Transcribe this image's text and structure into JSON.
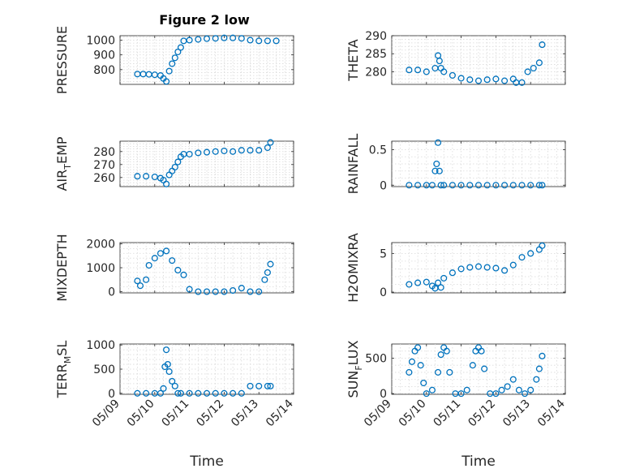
{
  "figure": {
    "title": "Figure 2 low"
  },
  "colors": {
    "marker": "#0072BD"
  },
  "chart_data": [
    {
      "type": "scatter",
      "title": "Figure 2 low",
      "ylabel": "PRESSURE",
      "ylabel_sub": "",
      "xlabel": "",
      "xlim": [
        "05/09",
        "05/14"
      ],
      "ylim": [
        700,
        1030
      ],
      "x_ticks": [
        "05/09",
        "05/10",
        "05/11",
        "05/12",
        "05/13",
        "05/14"
      ],
      "y_ticks": [
        800,
        900,
        1000
      ],
      "grid": true,
      "marker": "circle",
      "series": [
        {
          "x": [
            "05/09 12:00",
            "05/09 16:00",
            "05/09 20:00",
            "05/10 00:00",
            "05/10 04:00",
            "05/10 06:00",
            "05/10 08:00",
            "05/10 10:00",
            "05/10 12:00",
            "05/10 14:00",
            "05/10 16:00",
            "05/10 18:00",
            "05/10 20:00",
            "05/11 00:00",
            "05/11 06:00",
            "05/11 12:00",
            "05/11 18:00",
            "05/12 00:00",
            "05/12 06:00",
            "05/12 12:00",
            "05/12 18:00",
            "05/13 00:00",
            "05/13 06:00",
            "05/13 12:00"
          ],
          "y": [
            770,
            770,
            768,
            765,
            760,
            740,
            720,
            790,
            840,
            880,
            920,
            950,
            995,
            1000,
            1005,
            1010,
            1012,
            1015,
            1015,
            1012,
            1000,
            995,
            995,
            995
          ]
        }
      ]
    },
    {
      "type": "scatter",
      "ylabel": "THETA",
      "ylabel_sub": "",
      "xlabel": "",
      "xlim": [
        "05/09",
        "05/14"
      ],
      "ylim": [
        276.5,
        290
      ],
      "x_ticks": [
        "05/09",
        "05/10",
        "05/11",
        "05/12",
        "05/13",
        "05/14"
      ],
      "y_ticks": [
        280,
        285,
        290
      ],
      "grid": true,
      "marker": "circle",
      "series": [
        {
          "x": [
            "05/09 12:00",
            "05/09 18:00",
            "05/10 00:00",
            "05/10 06:00",
            "05/10 08:00",
            "05/10 09:00",
            "05/10 10:00",
            "05/10 12:00",
            "05/10 18:00",
            "05/11 00:00",
            "05/11 06:00",
            "05/11 12:00",
            "05/11 18:00",
            "05/12 00:00",
            "05/12 06:00",
            "05/12 12:00",
            "05/12 14:00",
            "05/12 18:00",
            "05/12 22:00",
            "05/13 02:00",
            "05/13 06:00",
            "05/13 08:00"
          ],
          "y": [
            280.5,
            280.5,
            280,
            281,
            284.5,
            283,
            281,
            280,
            279,
            278.2,
            277.8,
            277.5,
            277.8,
            278,
            277.5,
            278,
            277,
            277,
            280,
            281,
            282.5,
            287.5
          ]
        }
      ]
    },
    {
      "type": "scatter",
      "ylabel": "AIR",
      "ylabel_sub": "T",
      "ylabel_suffix": "EMP",
      "xlabel": "",
      "xlim": [
        "05/09",
        "05/14"
      ],
      "ylim": [
        253,
        288
      ],
      "x_ticks": [
        "05/09",
        "05/10",
        "05/11",
        "05/12",
        "05/13",
        "05/14"
      ],
      "y_ticks": [
        260,
        270,
        280
      ],
      "grid": true,
      "marker": "circle",
      "series": [
        {
          "x": [
            "05/09 12:00",
            "05/09 18:00",
            "05/10 00:00",
            "05/10 04:00",
            "05/10 06:00",
            "05/10 08:00",
            "05/10 10:00",
            "05/10 12:00",
            "05/10 14:00",
            "05/10 16:00",
            "05/10 18:00",
            "05/10 20:00",
            "05/11 00:00",
            "05/11 06:00",
            "05/11 12:00",
            "05/11 18:00",
            "05/12 00:00",
            "05/12 06:00",
            "05/12 12:00",
            "05/12 18:00",
            "05/13 00:00",
            "05/13 06:00",
            "05/13 08:00"
          ],
          "y": [
            261,
            261,
            260.5,
            259.5,
            258,
            255,
            262,
            265,
            268,
            272,
            276,
            278,
            278,
            279,
            279.5,
            280,
            280.5,
            280,
            281,
            281,
            281,
            283,
            287
          ]
        }
      ]
    },
    {
      "type": "scatter",
      "ylabel": "RAINFALL",
      "ylabel_sub": "",
      "xlabel": "",
      "xlim": [
        "05/09",
        "05/14"
      ],
      "ylim": [
        -0.02,
        0.62
      ],
      "x_ticks": [
        "05/09",
        "05/10",
        "05/11",
        "05/12",
        "05/13",
        "05/14"
      ],
      "y_ticks": [
        0,
        0.5
      ],
      "grid": true,
      "marker": "circle",
      "series": [
        {
          "x": [
            "05/09 12:00",
            "05/09 18:00",
            "05/10 00:00",
            "05/10 04:00",
            "05/10 06:00",
            "05/10 07:00",
            "05/10 08:00",
            "05/10 09:00",
            "05/10 10:00",
            "05/10 12:00",
            "05/10 18:00",
            "05/11 00:00",
            "05/11 06:00",
            "05/11 12:00",
            "05/11 18:00",
            "05/12 00:00",
            "05/12 06:00",
            "05/12 12:00",
            "05/12 18:00",
            "05/13 00:00",
            "05/13 06:00",
            "05/13 08:00"
          ],
          "y": [
            0,
            0,
            0,
            0,
            0.2,
            0.3,
            0.6,
            0.2,
            0,
            0,
            0,
            0,
            0,
            0,
            0,
            0,
            0,
            0,
            0,
            0,
            0,
            0
          ]
        }
      ]
    },
    {
      "type": "scatter",
      "ylabel": "MIXDEPTH",
      "ylabel_sub": "",
      "xlabel": "",
      "xlim": [
        "05/09",
        "05/14"
      ],
      "ylim": [
        -50,
        2050
      ],
      "x_ticks": [
        "05/09",
        "05/10",
        "05/11",
        "05/12",
        "05/13",
        "05/14"
      ],
      "y_ticks": [
        0,
        1000,
        2000
      ],
      "grid": true,
      "marker": "circle",
      "series": [
        {
          "x": [
            "05/09 12:00",
            "05/09 14:00",
            "05/09 18:00",
            "05/09 20:00",
            "05/10 00:00",
            "05/10 04:00",
            "05/10 08:00",
            "05/10 12:00",
            "05/10 16:00",
            "05/10 20:00",
            "05/11 00:00",
            "05/11 06:00",
            "05/11 12:00",
            "05/11 18:00",
            "05/12 00:00",
            "05/12 06:00",
            "05/12 12:00",
            "05/12 18:00",
            "05/13 00:00",
            "05/13 04:00",
            "05/13 06:00",
            "05/13 08:00"
          ],
          "y": [
            450,
            250,
            500,
            1100,
            1400,
            1600,
            1700,
            1300,
            900,
            700,
            100,
            0,
            0,
            0,
            0,
            50,
            150,
            0,
            0,
            500,
            800,
            1150
          ]
        }
      ]
    },
    {
      "type": "scatter",
      "ylabel": "H2OMIXRA",
      "ylabel_sub": "",
      "xlabel": "",
      "xlim": [
        "05/09",
        "05/14"
      ],
      "ylim": [
        -0.1,
        6.4
      ],
      "x_ticks": [
        "05/09",
        "05/10",
        "05/11",
        "05/12",
        "05/13",
        "05/14"
      ],
      "y_ticks": [
        0,
        5
      ],
      "grid": true,
      "marker": "circle",
      "series": [
        {
          "x": [
            "05/09 12:00",
            "05/09 18:00",
            "05/10 00:00",
            "05/10 04:00",
            "05/10 06:00",
            "05/10 08:00",
            "05/10 10:00",
            "05/10 12:00",
            "05/10 18:00",
            "05/11 00:00",
            "05/11 06:00",
            "05/11 12:00",
            "05/11 18:00",
            "05/12 00:00",
            "05/12 06:00",
            "05/12 12:00",
            "05/12 18:00",
            "05/13 00:00",
            "05/13 06:00",
            "05/13 08:00"
          ],
          "y": [
            1.0,
            1.2,
            1.3,
            0.8,
            0.5,
            1.2,
            0.6,
            1.8,
            2.5,
            3.0,
            3.2,
            3.3,
            3.2,
            3.1,
            2.8,
            3.5,
            4.5,
            5.0,
            5.5,
            6.0
          ]
        }
      ]
    },
    {
      "type": "scatter",
      "ylabel": "TERR",
      "ylabel_sub": "M",
      "ylabel_suffix": "SL",
      "xlabel": "Time",
      "xlim": [
        "05/09",
        "05/14"
      ],
      "ylim": [
        -20,
        1020
      ],
      "x_ticks": [
        "05/09",
        "05/10",
        "05/11",
        "05/12",
        "05/13",
        "05/14"
      ],
      "y_ticks": [
        0,
        500,
        1000
      ],
      "grid": true,
      "marker": "circle",
      "series": [
        {
          "x": [
            "05/09 12:00",
            "05/09 18:00",
            "05/10 00:00",
            "05/10 04:00",
            "05/10 06:00",
            "05/10 07:00",
            "05/10 08:00",
            "05/10 09:00",
            "05/10 10:00",
            "05/10 12:00",
            "05/10 14:00",
            "05/10 16:00",
            "05/10 18:00",
            "05/11 00:00",
            "05/11 06:00",
            "05/11 12:00",
            "05/11 18:00",
            "05/12 00:00",
            "05/12 06:00",
            "05/12 12:00",
            "05/12 18:00",
            "05/13 00:00",
            "05/13 06:00",
            "05/13 08:00"
          ],
          "y": [
            0,
            0,
            0,
            0,
            100,
            550,
            900,
            600,
            450,
            250,
            150,
            0,
            0,
            0,
            0,
            0,
            0,
            0,
            0,
            0,
            150,
            150,
            150,
            150
          ]
        }
      ]
    },
    {
      "type": "scatter",
      "ylabel": "SUN",
      "ylabel_sub": "F",
      "ylabel_suffix": "LUX",
      "xlabel": "Time",
      "xlim": [
        "05/09",
        "05/14"
      ],
      "ylim": [
        -10,
        700
      ],
      "x_ticks": [
        "05/09",
        "05/10",
        "05/11",
        "05/12",
        "05/13",
        "05/14"
      ],
      "y_ticks": [
        0,
        500
      ],
      "grid": true,
      "marker": "circle",
      "series": [
        {
          "x": [
            "05/09 12:00",
            "05/09 14:00",
            "05/09 16:00",
            "05/09 18:00",
            "05/09 20:00",
            "05/09 22:00",
            "05/10 00:00",
            "05/10 04:00",
            "05/10 08:00",
            "05/10 10:00",
            "05/10 12:00",
            "05/10 14:00",
            "05/10 16:00",
            "05/10 20:00",
            "05/11 00:00",
            "05/11 04:00",
            "05/11 08:00",
            "05/11 10:00",
            "05/11 12:00",
            "05/11 14:00",
            "05/11 16:00",
            "05/11 20:00",
            "05/12 00:00",
            "05/12 04:00",
            "05/12 08:00",
            "05/12 12:00",
            "05/12 16:00",
            "05/12 20:00",
            "05/13 00:00",
            "05/13 04:00",
            "05/13 06:00",
            "05/13 08:00"
          ],
          "y": [
            300,
            450,
            600,
            650,
            400,
            150,
            0,
            50,
            300,
            550,
            650,
            600,
            300,
            0,
            0,
            50,
            400,
            600,
            650,
            600,
            350,
            0,
            0,
            50,
            100,
            200,
            50,
            0,
            50,
            200,
            350,
            530
          ]
        }
      ]
    }
  ]
}
